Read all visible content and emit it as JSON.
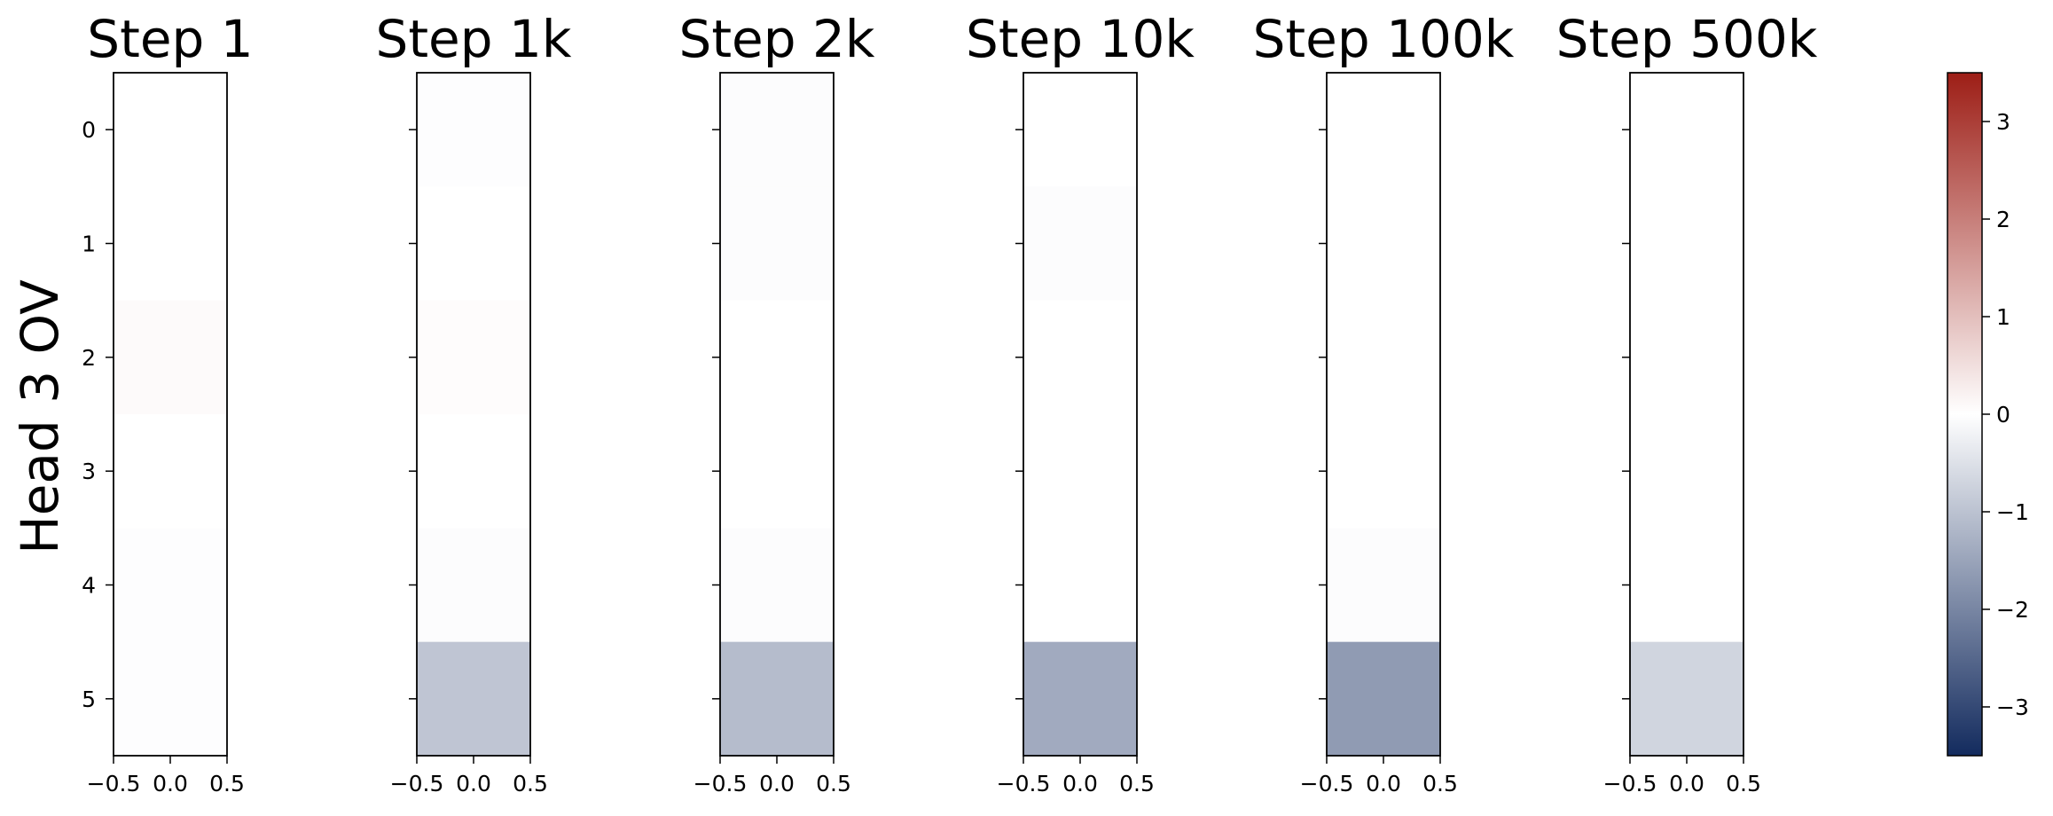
{
  "row_label": "Head 3 OV",
  "colors": {
    "cmap_neg": "#132b5e",
    "cmap_mid": "#ffffff",
    "cmap_pos": "#9d1e16"
  },
  "chart_data": {
    "type": "heatmap",
    "colormap": "diverging blue-white-red",
    "color_range": [
      -3.5,
      3.5
    ],
    "colorbar_ticks": [
      "3",
      "2",
      "1",
      "0",
      "−1",
      "−2",
      "−3"
    ],
    "colorbar_tick_values": [
      3,
      2,
      1,
      0,
      -1,
      -2,
      -3
    ],
    "x_ticks": [
      "−0.5",
      "0.0",
      "0.5"
    ],
    "x_tick_values": [
      -0.5,
      0.0,
      0.5
    ],
    "y_ticks": [
      "0",
      "1",
      "2",
      "3",
      "4",
      "5"
    ],
    "y_tick_values": [
      0,
      1,
      2,
      3,
      4,
      5
    ],
    "panels": [
      {
        "title": "Step 1",
        "values": [
          0.0,
          0.0,
          0.08,
          0.0,
          -0.03,
          -0.03
        ]
      },
      {
        "title": "Step 1k",
        "values": [
          -0.03,
          0.0,
          0.05,
          0.0,
          -0.05,
          -0.95
        ]
      },
      {
        "title": "Step 2k",
        "values": [
          -0.05,
          -0.05,
          0.0,
          0.0,
          -0.05,
          -1.1
        ]
      },
      {
        "title": "Step 10k",
        "values": [
          0.0,
          -0.05,
          0.0,
          0.0,
          0.0,
          -1.4
        ]
      },
      {
        "title": "Step 100k",
        "values": [
          0.0,
          0.0,
          0.0,
          0.0,
          -0.05,
          -1.65
        ]
      },
      {
        "title": "Step 500k",
        "values": [
          0.0,
          0.0,
          0.0,
          0.0,
          0.0,
          -0.7
        ]
      }
    ]
  }
}
